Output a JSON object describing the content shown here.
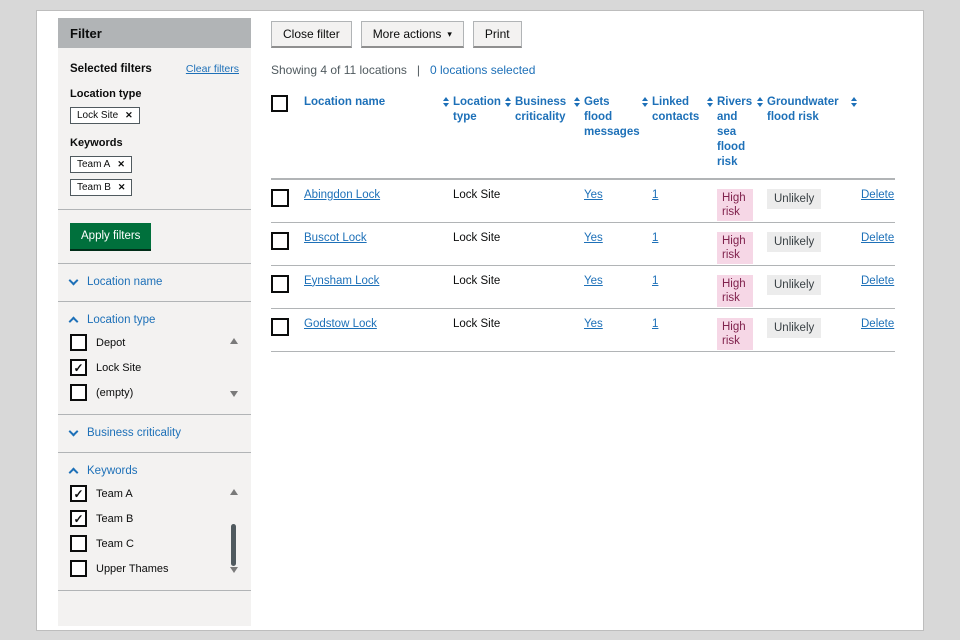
{
  "colors": {
    "accent_blue": "#1d70b8",
    "button_green": "#00703c",
    "risk_pink_bg": "#f6d7e6",
    "risk_pink_text": "#80224d",
    "tag_grey_bg": "#ececec",
    "sidebar_bg": "#f3f2f1",
    "sidebar_header_bg": "#b1b4b6"
  },
  "icons": {
    "caret": "▾",
    "remove": "✕",
    "check": "✓"
  },
  "filter": {
    "title": "Filter",
    "selected_filters_label": "Selected filters",
    "clear_filters": "Clear filters",
    "groups": [
      {
        "label": "Location type",
        "tags": [
          "Lock Site"
        ]
      },
      {
        "label": "Keywords",
        "tags": [
          "Team A",
          "Team B"
        ]
      }
    ],
    "apply_button": "Apply filters",
    "sections": [
      {
        "label": "Location name",
        "expanded": false
      },
      {
        "label": "Location type",
        "expanded": true,
        "scrollbar": true,
        "thumb": false,
        "options": [
          {
            "label": "Depot",
            "checked": false
          },
          {
            "label": "Lock Site",
            "checked": true
          },
          {
            "label": "(empty)",
            "checked": false
          }
        ]
      },
      {
        "label": "Business criticality",
        "expanded": false
      },
      {
        "label": "Keywords",
        "expanded": true,
        "scrollbar": true,
        "thumb": true,
        "options": [
          {
            "label": "Team A",
            "checked": true
          },
          {
            "label": "Team B",
            "checked": true
          },
          {
            "label": "Team C",
            "checked": false
          },
          {
            "label": "Upper Thames",
            "checked": false
          }
        ]
      }
    ]
  },
  "toolbar": {
    "close_filter": "Close filter",
    "more_actions": "More actions",
    "print": "Print"
  },
  "status": {
    "showing": "Showing 4 of 11 locations",
    "divider": "|",
    "selected_link": "0 locations selected"
  },
  "table": {
    "headers": [
      {
        "label": "Location name",
        "sortable": true
      },
      {
        "label": "Location type",
        "sortable": true
      },
      {
        "label": "Business criticality",
        "sortable": true
      },
      {
        "label": "Gets flood messages",
        "sortable": true
      },
      {
        "label": "Linked contacts",
        "sortable": true
      },
      {
        "label": "Rivers and sea flood risk",
        "sortable": true
      },
      {
        "label": "Groundwater flood risk",
        "sortable": true
      }
    ],
    "rows": [
      {
        "name": "Abingdon Lock",
        "type": "Lock Site",
        "criticality": "",
        "messages": "Yes",
        "contacts": "1",
        "rivers_risk": {
          "label": "High risk",
          "style": "pink"
        },
        "groundwater_risk": {
          "label": "Unlikely",
          "style": "grey"
        },
        "delete_label": "Delete"
      },
      {
        "name": "Buscot Lock",
        "type": "Lock Site",
        "criticality": "",
        "messages": "Yes",
        "contacts": "1",
        "rivers_risk": {
          "label": "High risk",
          "style": "pink"
        },
        "groundwater_risk": {
          "label": "Unlikely",
          "style": "grey"
        },
        "delete_label": "Delete"
      },
      {
        "name": "Eynsham Lock",
        "type": "Lock Site",
        "criticality": "",
        "messages": "Yes",
        "contacts": "1",
        "rivers_risk": {
          "label": "High risk",
          "style": "pink"
        },
        "groundwater_risk": {
          "label": "Unlikely",
          "style": "grey"
        },
        "delete_label": "Delete"
      },
      {
        "name": "Godstow Lock",
        "type": "Lock Site",
        "criticality": "",
        "messages": "Yes",
        "contacts": "1",
        "rivers_risk": {
          "label": "High risk",
          "style": "pink"
        },
        "groundwater_risk": {
          "label": "Unlikely",
          "style": "grey"
        },
        "delete_label": "Delete"
      }
    ]
  }
}
